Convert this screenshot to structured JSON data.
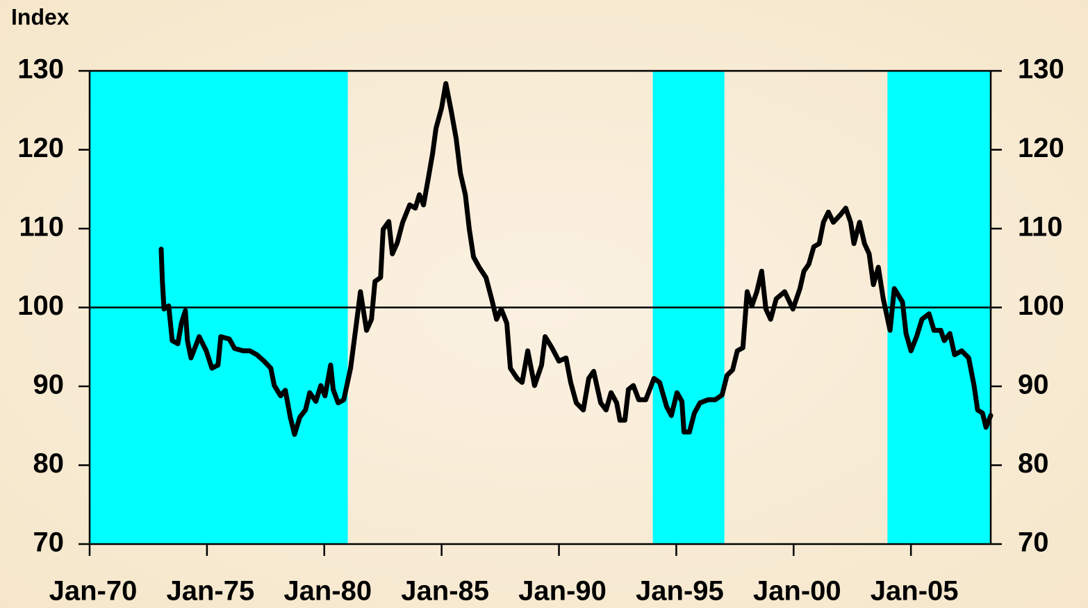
{
  "chart_data": {
    "type": "line",
    "title": "Index",
    "xlim": [
      1970,
      2008.4
    ],
    "xticks": [
      {
        "value": 1970,
        "label": "Jan-70"
      },
      {
        "value": 1975,
        "label": "Jan-75"
      },
      {
        "value": 1980,
        "label": "Jan-80"
      },
      {
        "value": 1985,
        "label": "Jan-85"
      },
      {
        "value": 1990,
        "label": "Jan-90"
      },
      {
        "value": 1995,
        "label": "Jan-95"
      },
      {
        "value": 2000,
        "label": "Jan-00"
      },
      {
        "value": 2005,
        "label": "Jan-05"
      }
    ],
    "ylim": [
      70,
      130
    ],
    "yticks": [
      70,
      80,
      90,
      100,
      110,
      120,
      130
    ],
    "y2lim": [
      70,
      130
    ],
    "y2ticks": [
      70,
      80,
      90,
      100,
      110,
      120,
      130
    ],
    "reference_line": 100,
    "shaded_regions": [
      [
        1970,
        1981
      ],
      [
        1994,
        1997.05
      ],
      [
        2004,
        2008.4
      ]
    ],
    "shade_color": "#00ffff",
    "x": [
      1973.05,
      1973.1,
      1973.17,
      1973.37,
      1973.52,
      1973.76,
      1973.91,
      1974.08,
      1974.17,
      1974.32,
      1974.67,
      1974.97,
      1975.21,
      1975.47,
      1975.59,
      1975.95,
      1976.18,
      1976.54,
      1976.83,
      1977.13,
      1977.43,
      1977.72,
      1977.87,
      1978.14,
      1978.34,
      1978.55,
      1978.73,
      1978.96,
      1979.2,
      1979.38,
      1979.64,
      1979.85,
      1980.03,
      1980.27,
      1980.38,
      1980.59,
      1980.83,
      1981.12,
      1981.33,
      1981.54,
      1981.8,
      1982.01,
      1982.16,
      1982.4,
      1982.51,
      1982.75,
      1982.9,
      1983.11,
      1983.34,
      1983.64,
      1983.88,
      1984.05,
      1984.23,
      1984.44,
      1984.62,
      1984.76,
      1985,
      1985.18,
      1985.41,
      1985.62,
      1985.8,
      1986.01,
      1986.18,
      1986.36,
      1986.6,
      1986.89,
      1987.13,
      1987.34,
      1987.54,
      1987.78,
      1987.93,
      1988.22,
      1988.43,
      1988.67,
      1988.96,
      1989.26,
      1989.41,
      1989.7,
      1990,
      1990.3,
      1990.5,
      1990.74,
      1991.04,
      1991.27,
      1991.48,
      1991.78,
      1992.01,
      1992.22,
      1992.46,
      1992.6,
      1992.81,
      1992.96,
      1993.17,
      1993.4,
      1993.7,
      1994.05,
      1994.29,
      1994.59,
      1994.79,
      1995.03,
      1995.24,
      1995.33,
      1995.56,
      1995.77,
      1996.01,
      1996.36,
      1996.66,
      1996.95,
      1997.16,
      1997.4,
      1997.6,
      1997.84,
      1998.02,
      1998.22,
      1998.43,
      1998.64,
      1998.82,
      1999.02,
      1999.26,
      1999.62,
      1999.97,
      2000.27,
      2000.44,
      2000.65,
      2000.86,
      2001.09,
      2001.27,
      2001.48,
      2001.69,
      2001.98,
      2002.22,
      2002.43,
      2002.57,
      2002.81,
      2003.02,
      2003.22,
      2003.4,
      2003.61,
      2003.82,
      2004.11,
      2004.29,
      2004.64,
      2004.79,
      2005,
      2005.24,
      2005.47,
      2005.77,
      2005.98,
      2006.27,
      2006.42,
      2006.66,
      2006.86,
      2007.16,
      2007.46,
      2007.69,
      2007.84,
      2008.05,
      2008.2,
      2008.4
    ],
    "series": [
      {
        "color": "#000000",
        "values": [
          107.4,
          103.3,
          99.8,
          100.2,
          95.8,
          95.4,
          98,
          99.6,
          95.8,
          93.6,
          96.3,
          94.5,
          92.3,
          92.7,
          96.3,
          96,
          94.8,
          94.5,
          94.5,
          94,
          93.2,
          92.3,
          90.1,
          88.8,
          89.5,
          86.1,
          83.9,
          86.1,
          87,
          89.2,
          88.1,
          90.1,
          88.8,
          92.7,
          89.6,
          87.9,
          88.3,
          92.3,
          97.1,
          102,
          97.1,
          98.5,
          103.3,
          103.8,
          109.9,
          110.9,
          106.8,
          108.2,
          110.8,
          113,
          112.6,
          114.3,
          113,
          116.5,
          119.6,
          122.7,
          125.3,
          128.4,
          124.9,
          121.4,
          117,
          114.3,
          109.9,
          106.4,
          105.1,
          103.8,
          101.1,
          98.5,
          99.8,
          98,
          92.3,
          91,
          90.5,
          94.5,
          90.1,
          92.7,
          96.3,
          94.9,
          93.2,
          93.6,
          90.5,
          87.9,
          87,
          91,
          91.9,
          87.9,
          87,
          89.2,
          87.9,
          85.7,
          85.7,
          89.6,
          90.1,
          88.3,
          88.3,
          91,
          90.5,
          87.4,
          86.3,
          89.2,
          88.1,
          84.2,
          84.2,
          86.6,
          87.9,
          88.3,
          88.3,
          88.9,
          91.4,
          92.1,
          94.5,
          94.9,
          102,
          100.2,
          102,
          104.6,
          99.8,
          98.5,
          101.1,
          102,
          99.8,
          102.4,
          104.6,
          105.5,
          107.7,
          108.1,
          110.8,
          112.1,
          110.8,
          111.7,
          112.6,
          110.8,
          108.1,
          110.8,
          108.1,
          106.8,
          102.9,
          105.1,
          101.1,
          97.1,
          102.4,
          100.7,
          96.7,
          94.5,
          96.3,
          98.5,
          99.2,
          97.1,
          97.1,
          95.8,
          96.7,
          94,
          94.5,
          93.6,
          90.1,
          87,
          86.6,
          84.8,
          86.3
        ]
      }
    ]
  }
}
